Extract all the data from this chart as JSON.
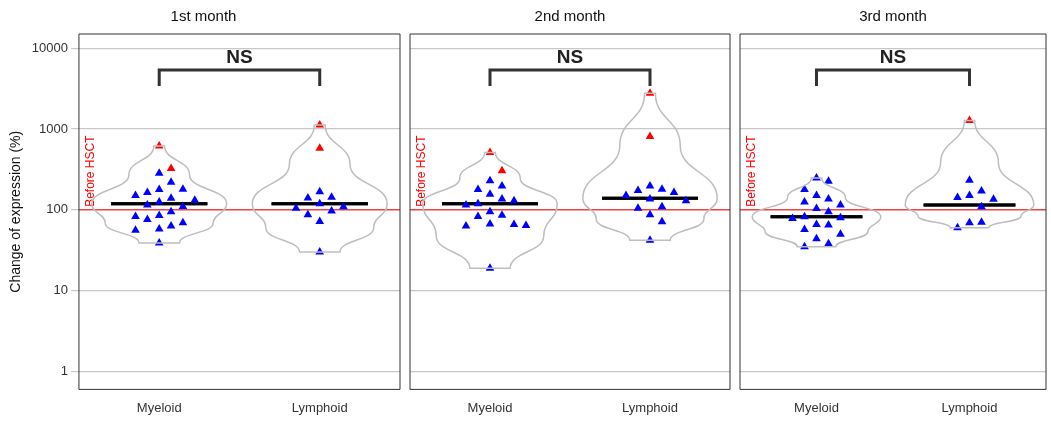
{
  "chart_data": [
    {
      "type": "scatter",
      "title": "1st month",
      "ylabel": "Change of expression (%)",
      "categories": [
        "Myeloid",
        "Lymphoid"
      ],
      "log": "y",
      "ylim": [
        0.6,
        15000
      ],
      "yticks": [
        1,
        10,
        100,
        1000,
        10000
      ],
      "grid": "y",
      "marker": "triangle",
      "ref_lines": [
        {
          "axis": "y",
          "value": 100,
          "label": "Before HSCT",
          "color": "#ff0000"
        }
      ],
      "annotations": [
        "NS"
      ],
      "series": [
        {
          "type": "box",
          "color": "#000000",
          "boxes": [
            {
              "low": 119,
              "q1": 119,
              "median": 119,
              "q3": 119,
              "high": 119
            },
            {
              "low": 119,
              "q1": 119,
              "median": 119,
              "q3": 119,
              "high": 119
            }
          ]
        },
        {
          "color": "#0000ff",
          "x": [
            "Myeloid",
            "Myeloid",
            "Myeloid",
            "Myeloid",
            "Myeloid",
            "Myeloid",
            "Myeloid",
            "Myeloid",
            "Myeloid",
            "Myeloid",
            "Myeloid",
            "Myeloid",
            "Myeloid",
            "Myeloid",
            "Myeloid",
            "Myeloid",
            "Myeloid",
            "Myeloid",
            "Myeloid",
            "Myeloid",
            "Lymphoid",
            "Lymphoid",
            "Lymphoid",
            "Lymphoid",
            "Lymphoid",
            "Lymphoid",
            "Lymphoid",
            "Lymphoid",
            "Lymphoid",
            "Lymphoid"
          ],
          "values": [
            283,
            220,
            179,
            164,
            180,
            139,
            150,
            131,
            125,
            115,
            110,
            95,
            85,
            83,
            76,
            69,
            63,
            58,
            56,
            39,
            167,
            143,
            140,
            119,
            109,
            105,
            97,
            87,
            72,
            30
          ]
        },
        {
          "color": "#ff0000",
          "x": [
            "Myeloid",
            "Myeloid",
            "Lymphoid",
            "Lymphoid"
          ],
          "values": [
            616,
            325,
            1120,
            580
          ]
        }
      ]
    },
    {
      "type": "scatter",
      "title": "2nd month",
      "categories": [
        "Myeloid",
        "Lymphoid"
      ],
      "log": "y",
      "ylim": [
        0.6,
        15000
      ],
      "yticks": [
        1,
        10,
        100,
        1000,
        10000
      ],
      "grid": "y",
      "tick_labels": "x",
      "marker": "triangle",
      "ref_lines": [
        {
          "axis": "y",
          "value": 100,
          "label": "Before HSCT",
          "color": "#ff0000"
        }
      ],
      "annotations": [
        "NS"
      ],
      "series": [
        {
          "type": "box",
          "color": "#000000",
          "boxes": [
            {
              "low": 119,
              "q1": 119,
              "median": 119,
              "q3": 119,
              "high": 119
            },
            {
              "low": 139,
              "q1": 139,
              "median": 139,
              "q3": 139,
              "high": 139
            }
          ]
        },
        {
          "color": "#0000ff",
          "x": [
            "Myeloid",
            "Myeloid",
            "Myeloid",
            "Myeloid",
            "Myeloid",
            "Myeloid",
            "Myeloid",
            "Myeloid",
            "Myeloid",
            "Myeloid",
            "Myeloid",
            "Myeloid",
            "Myeloid",
            "Myeloid",
            "Myeloid",
            "Myeloid",
            "Lymphoid",
            "Lymphoid",
            "Lymphoid",
            "Lymphoid",
            "Lymphoid",
            "Lymphoid",
            "Lymphoid",
            "Lymphoid",
            "Lymphoid",
            "Lymphoid",
            "Lymphoid",
            "Lymphoid"
          ],
          "values": [
            229,
            197,
            179,
            156,
            136,
            130,
            119,
            115,
            95,
            86,
            83,
            67,
            66,
            63,
            64,
            19,
            197,
            180,
            173,
            164,
            151,
            136,
            130,
            109,
            105,
            87,
            71,
            42
          ]
        },
        {
          "color": "#ff0000",
          "x": [
            "Myeloid",
            "Myeloid",
            "Lymphoid",
            "Lymphoid"
          ],
          "values": [
            512,
            305,
            2780,
            810
          ]
        }
      ]
    },
    {
      "type": "scatter",
      "title": "3rd month",
      "categories": [
        "Myeloid",
        "Lymphoid"
      ],
      "log": "y",
      "ylim": [
        0.6,
        15000
      ],
      "yticks": [
        1,
        10,
        100,
        1000,
        10000
      ],
      "grid": "y",
      "tick_labels": "x",
      "marker": "triangle",
      "ref_lines": [
        {
          "axis": "y",
          "value": 100,
          "label": "Before HSCT",
          "color": "#ff0000"
        }
      ],
      "annotations": [
        "NS"
      ],
      "series": [
        {
          "type": "box",
          "color": "#000000",
          "boxes": [
            {
              "low": 82,
              "q1": 82,
              "median": 82,
              "q3": 82,
              "high": 82
            },
            {
              "low": 115,
              "q1": 115,
              "median": 115,
              "q3": 115,
              "high": 115
            }
          ]
        },
        {
          "color": "#0000ff",
          "x": [
            "Myeloid",
            "Myeloid",
            "Myeloid",
            "Myeloid",
            "Myeloid",
            "Myeloid",
            "Myeloid",
            "Myeloid",
            "Myeloid",
            "Myeloid",
            "Myeloid",
            "Myeloid",
            "Myeloid",
            "Myeloid",
            "Myeloid",
            "Myeloid",
            "Myeloid",
            "Myeloid",
            "Myeloid",
            "Lymphoid",
            "Lymphoid",
            "Lymphoid",
            "Lymphoid",
            "Lymphoid",
            "Lymphoid",
            "Lymphoid",
            "Lymphoid",
            "Lymphoid"
          ],
          "values": [
            247,
            226,
            179,
            150,
            136,
            125,
            115,
            104,
            95,
            82,
            80,
            78,
            66,
            65,
            57,
            50,
            44,
            38,
            35,
            232,
            171,
            150,
            142,
            135,
            109,
            69,
            70,
            60
          ]
        },
        {
          "color": "#ff0000",
          "x": [
            "Lymphoid"
          ],
          "values": [
            1280
          ]
        }
      ]
    }
  ]
}
